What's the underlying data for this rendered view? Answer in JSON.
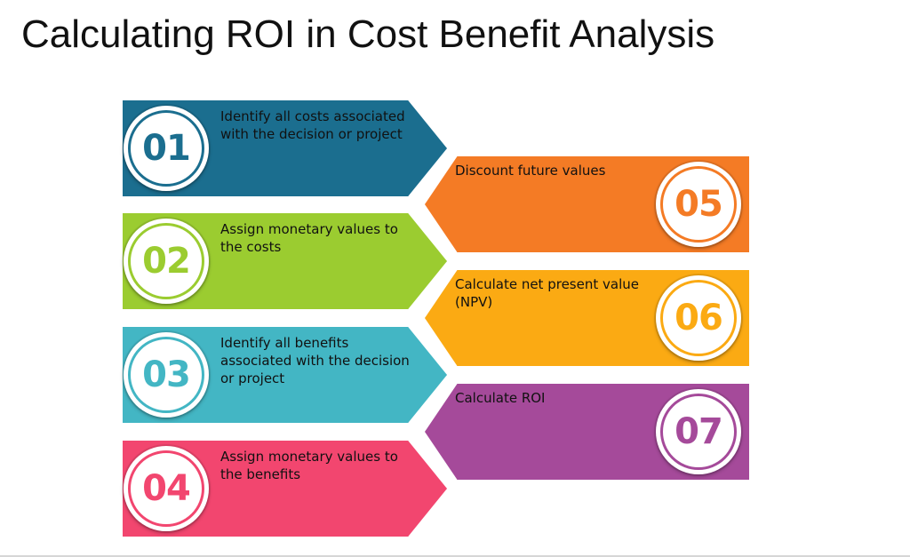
{
  "title": "Calculating ROI in Cost Benefit Analysis",
  "steps": [
    {
      "num": "01",
      "label": "Identify all costs associated with the decision or project",
      "color": "#1b6e8f"
    },
    {
      "num": "02",
      "label": "Assign monetary values to the costs",
      "color": "#9bcc30"
    },
    {
      "num": "03",
      "label": "Identify all benefits associated with the decision or project",
      "color": "#43b6c4"
    },
    {
      "num": "04",
      "label": "Assign monetary values to the benefits",
      "color": "#f2466f"
    },
    {
      "num": "05",
      "label": "Discount future values",
      "color": "#f47b25"
    },
    {
      "num": "06",
      "label": "Calculate net present value (NPV)",
      "color": "#fbaa13"
    },
    {
      "num": "07",
      "label": "Calculate ROI",
      "color": "#a54a9a"
    }
  ]
}
